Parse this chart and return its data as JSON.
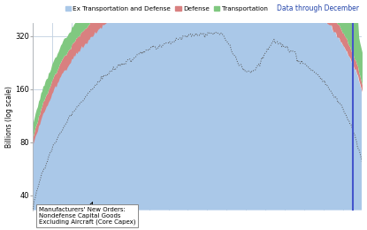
{
  "ylabel": "Billions (log scale)",
  "note": "Data through December",
  "legend_labels": [
    "Ex Transportation and Defense",
    "Defense",
    "Transportation"
  ],
  "legend_colors": [
    "#aac8e8",
    "#d98080",
    "#80c880"
  ],
  "line_color": "#555555",
  "line_label": "Manufacturers' New Orders:\nNondefense Capital Goods\nExcluding Aircraft (Core Capex)",
  "yticks": [
    40,
    80,
    160,
    320
  ],
  "ylim_log": [
    33,
    380
  ],
  "background_color": "#ffffff",
  "plot_bg": "#ffffff",
  "n_points": 300,
  "vertical_line_color": "#4455cc"
}
